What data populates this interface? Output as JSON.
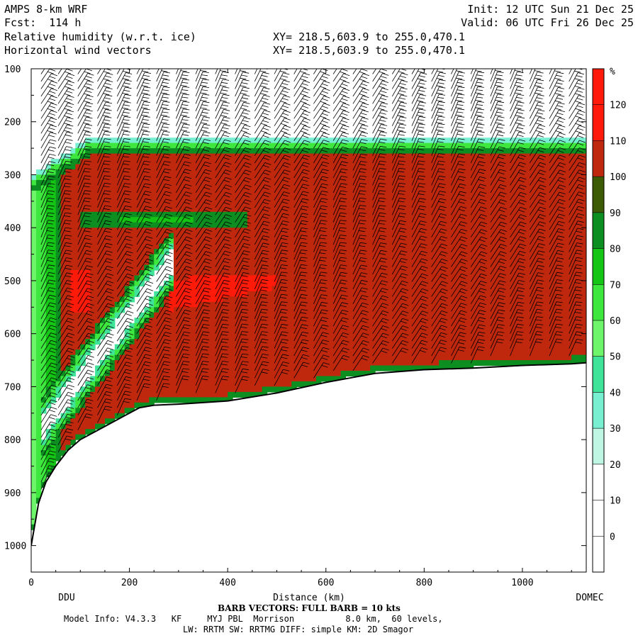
{
  "header": {
    "model": "AMPS 8-km WRF",
    "fcst": "Fcst:  114 h",
    "init": "Init: 12 UTC Sun 21 Dec 25",
    "valid": "Valid: 06 UTC Fri 26 Dec 25",
    "field1": "Relative humidity (w.r.t. ice)",
    "field2": "Horizontal wind vectors",
    "xy1": "XY= 218.5,603.9 to 255.0,470.1",
    "xy2": "XY= 218.5,603.9 to 255.0,470.1"
  },
  "footer": {
    "barb_note": "BARB VECTORS:  FULL BARB = 10 kts",
    "model_info": "Model Info: V4.3.3   KF     MYJ PBL  Morrison          8.0 km,  60 levels,",
    "physics": "LW: RRTM SW: RRTMG   DIFF: simple KM: 2D Smagor"
  },
  "colors": {
    "bands": [
      "#ffffff",
      "#ffffff",
      "#ffffff",
      "#bff5e3",
      "#77efd0",
      "#3fe39a",
      "#6ff56a",
      "#3ee73e",
      "#15c515",
      "#0c8e21",
      "#3d5a05",
      "#c0280e",
      "#ff1a0a"
    ],
    "terrain": "#ffffff"
  },
  "chart_data": {
    "type": "heatmap",
    "title": "Relative humidity (w.r.t. ice)",
    "xlabel": "Distance (km)",
    "ylabel": "",
    "xlim": [
      0,
      1130
    ],
    "ylim": [
      1050,
      100
    ],
    "x_ticks": [
      "0",
      "200",
      "400",
      "600",
      "800",
      "1000"
    ],
    "y_ticks": [
      "100",
      "200",
      "300",
      "400",
      "500",
      "600",
      "700",
      "800",
      "900",
      "1000"
    ],
    "x_endpoint_labels": {
      "left": "DDU",
      "right": "DOMEC"
    },
    "colorbar": {
      "unit": "%",
      "labels": [
        "0",
        "10",
        "20",
        "30",
        "40",
        "50",
        "60",
        "70",
        "80",
        "90",
        "100",
        "110",
        "120"
      ],
      "bounds": [
        -10,
        0,
        10,
        20,
        30,
        40,
        50,
        60,
        70,
        80,
        90,
        100,
        110,
        120,
        130
      ]
    },
    "terrain_surface": {
      "distance_km": [
        0,
        15,
        30,
        50,
        75,
        100,
        130,
        160,
        190,
        220,
        250,
        300,
        400,
        500,
        600,
        700,
        800,
        900,
        1000,
        1100,
        1130
      ],
      "pressure_hpa": [
        1000,
        920,
        880,
        850,
        820,
        800,
        785,
        770,
        755,
        740,
        735,
        733,
        727,
        712,
        692,
        675,
        668,
        665,
        660,
        657,
        655
      ]
    },
    "regions": [
      {
        "feature": "upper dry layer",
        "rh_percent": 10,
        "distance_km": [
          0,
          1130
        ],
        "pressure_hpa": [
          100,
          240
        ]
      },
      {
        "feature": "saturated layer",
        "rh_percent": 105,
        "distance_km": [
          60,
          1130
        ],
        "pressure_hpa": [
          240,
          655
        ]
      },
      {
        "feature": "moist band",
        "rh_percent": 85,
        "distance_km": [
          100,
          440
        ],
        "pressure_hpa": [
          370,
          400
        ]
      },
      {
        "feature": "dry tongue",
        "rh_percent": 15,
        "distance_km": [
          20,
          280
        ],
        "pressure_hpa": [
          470,
          780
        ]
      },
      {
        "feature": "supersaturated patch",
        "rh_percent": 125,
        "distance_km": [
          280,
          500
        ],
        "pressure_hpa": [
          490,
          570
        ]
      },
      {
        "feature": "supersaturated patch",
        "rh_percent": 125,
        "distance_km": [
          85,
          120
        ],
        "pressure_hpa": [
          480,
          560
        ]
      }
    ],
    "wind_barb_columns_km": [
      20,
      55,
      95,
      135,
      175,
      215,
      255,
      295,
      335,
      375,
      415,
      455,
      495,
      535,
      575,
      615,
      655,
      695,
      735,
      775,
      815,
      855,
      895,
      935,
      975,
      1015,
      1055,
      1095
    ]
  }
}
